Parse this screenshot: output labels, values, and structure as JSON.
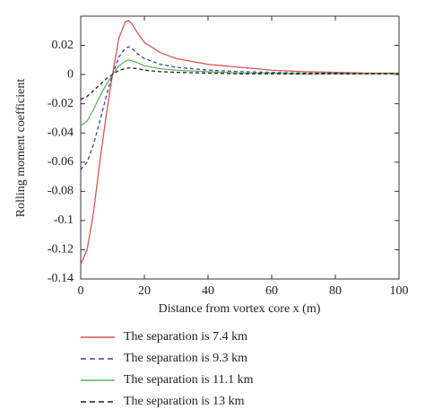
{
  "chart_data": {
    "type": "line",
    "x_label": "Distance from vortex core x (m)",
    "y_label": "Rolling moment coefficient",
    "x": [
      0,
      2,
      4,
      6,
      8,
      10,
      12,
      14,
      15,
      16,
      18,
      20,
      25,
      30,
      40,
      50,
      60,
      70,
      80,
      90,
      100
    ],
    "series": [
      {
        "name": "The separation is 7.4 km",
        "color": "#d9534f",
        "style": "solid",
        "values": [
          -0.13,
          -0.12,
          -0.095,
          -0.06,
          -0.028,
          0,
          0.025,
          0.036,
          0.037,
          0.035,
          0.028,
          0.022,
          0.015,
          0.011,
          0.007,
          0.005,
          0.003,
          0.002,
          0.0015,
          0.001,
          0.001
        ]
      },
      {
        "name": "The separation is 9.3 km",
        "color": "#3b3fa8",
        "style": "dashed",
        "values": [
          -0.065,
          -0.06,
          -0.048,
          -0.032,
          -0.015,
          0,
          0.012,
          0.018,
          0.019,
          0.018,
          0.014,
          0.011,
          0.007,
          0.005,
          0.003,
          0.002,
          0.0015,
          0.001,
          0.001,
          0.0005,
          0.0005
        ]
      },
      {
        "name": "The separation is 11.1 km",
        "color": "#5cb85c",
        "style": "solid",
        "values": [
          -0.035,
          -0.032,
          -0.024,
          -0.015,
          -0.007,
          0,
          0.006,
          0.009,
          0.01,
          0.0095,
          0.008,
          0.006,
          0.004,
          0.003,
          0.002,
          0.001,
          0.001,
          0.0005,
          0.0005,
          0.0005,
          0.0005
        ]
      },
      {
        "name": "The separation is 13 km",
        "color": "#222222",
        "style": "dashed",
        "values": [
          -0.017,
          -0.015,
          -0.011,
          -0.007,
          -0.003,
          0,
          0.003,
          0.004,
          0.0045,
          0.0045,
          0.004,
          0.003,
          0.002,
          0.0015,
          0.001,
          0.0005,
          0.0005,
          0.0005,
          0.0005,
          0.0005,
          0.0005
        ]
      }
    ],
    "xlim": [
      0,
      100
    ],
    "xticks": [
      0,
      20,
      40,
      60,
      80,
      100
    ],
    "ylim": [
      -0.14,
      0.04
    ],
    "yticks": [
      -0.14,
      -0.12,
      -0.1,
      -0.08,
      -0.06,
      -0.04,
      -0.02,
      0,
      0.02
    ],
    "grid": false
  }
}
